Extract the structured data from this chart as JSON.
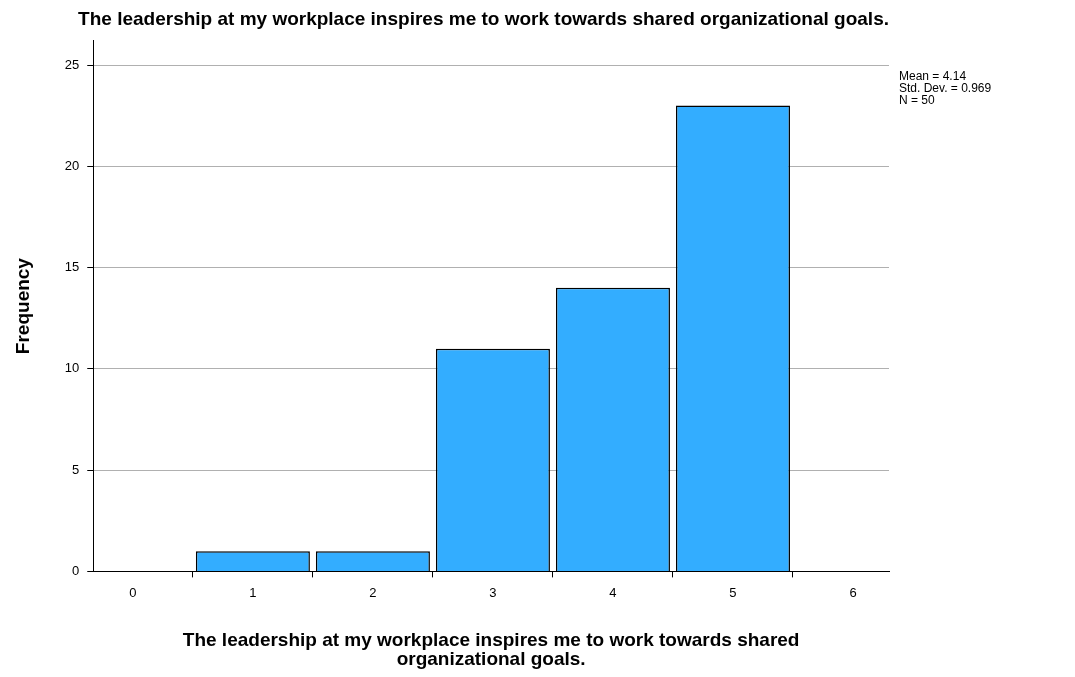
{
  "chart_data": {
    "type": "bar",
    "title": "The leadership at my workplace inspires me to work towards shared organizational goals.",
    "xlabel": "The leadership at my workplace inspires me to work towards shared organizational goals.",
    "ylabel": "Frequency",
    "x": [
      1,
      2,
      3,
      4,
      5
    ],
    "values": [
      1,
      1,
      11,
      14,
      23
    ],
    "color": "#33adff",
    "xlim": [
      -0.33,
      6.3
    ],
    "xticks": [
      0,
      1,
      2,
      3,
      4,
      5,
      6
    ],
    "ylim": [
      0,
      26.2
    ],
    "yticks": [
      0,
      5,
      10,
      15,
      20,
      25
    ],
    "grid": "y",
    "legend": false,
    "annotations": [
      "Mean = 4.14",
      "Std. Dev. = 0.969",
      "N = 50"
    ]
  }
}
